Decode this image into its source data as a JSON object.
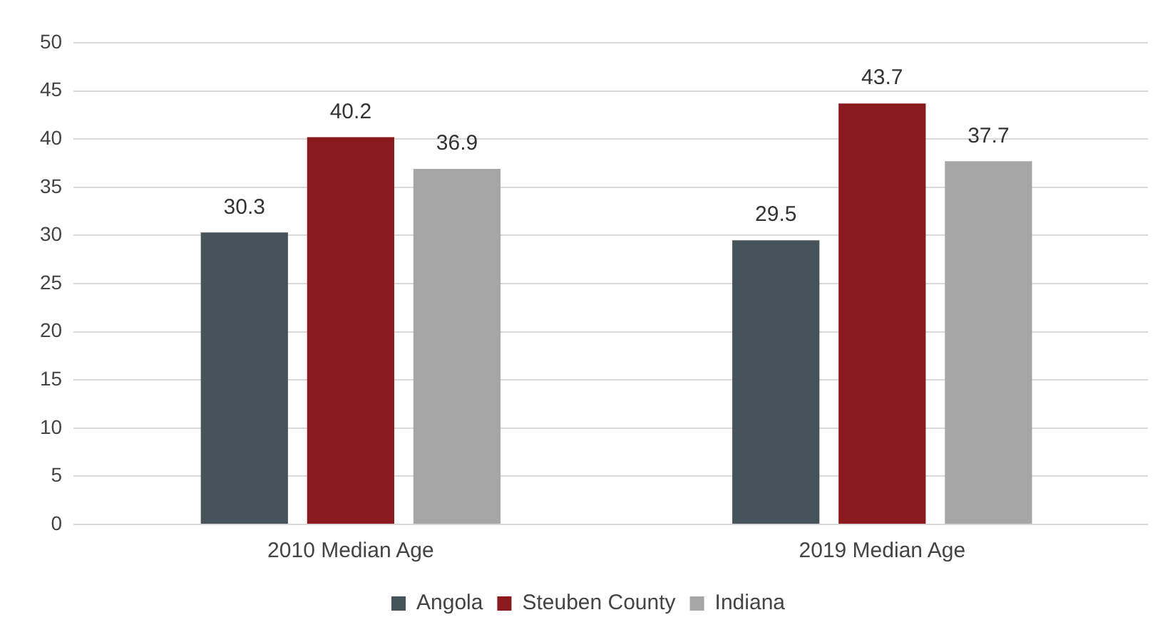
{
  "chart_data": {
    "type": "bar",
    "categories": [
      "2010 Median Age",
      "2019 Median Age"
    ],
    "series": [
      {
        "name": "Angola",
        "color": "#46535a",
        "values": [
          30.3,
          29.5
        ]
      },
      {
        "name": "Steuben County",
        "color": "#8b1a1e",
        "values": [
          40.2,
          43.7
        ]
      },
      {
        "name": "Indiana",
        "color": "#a6a6a6",
        "values": [
          36.9,
          37.7
        ]
      }
    ],
    "ylim": [
      0,
      50
    ],
    "yticks": [
      0,
      5,
      10,
      15,
      20,
      25,
      30,
      35,
      40,
      45,
      50
    ],
    "grid": "y",
    "legend": "bottom",
    "data_labels": true
  }
}
